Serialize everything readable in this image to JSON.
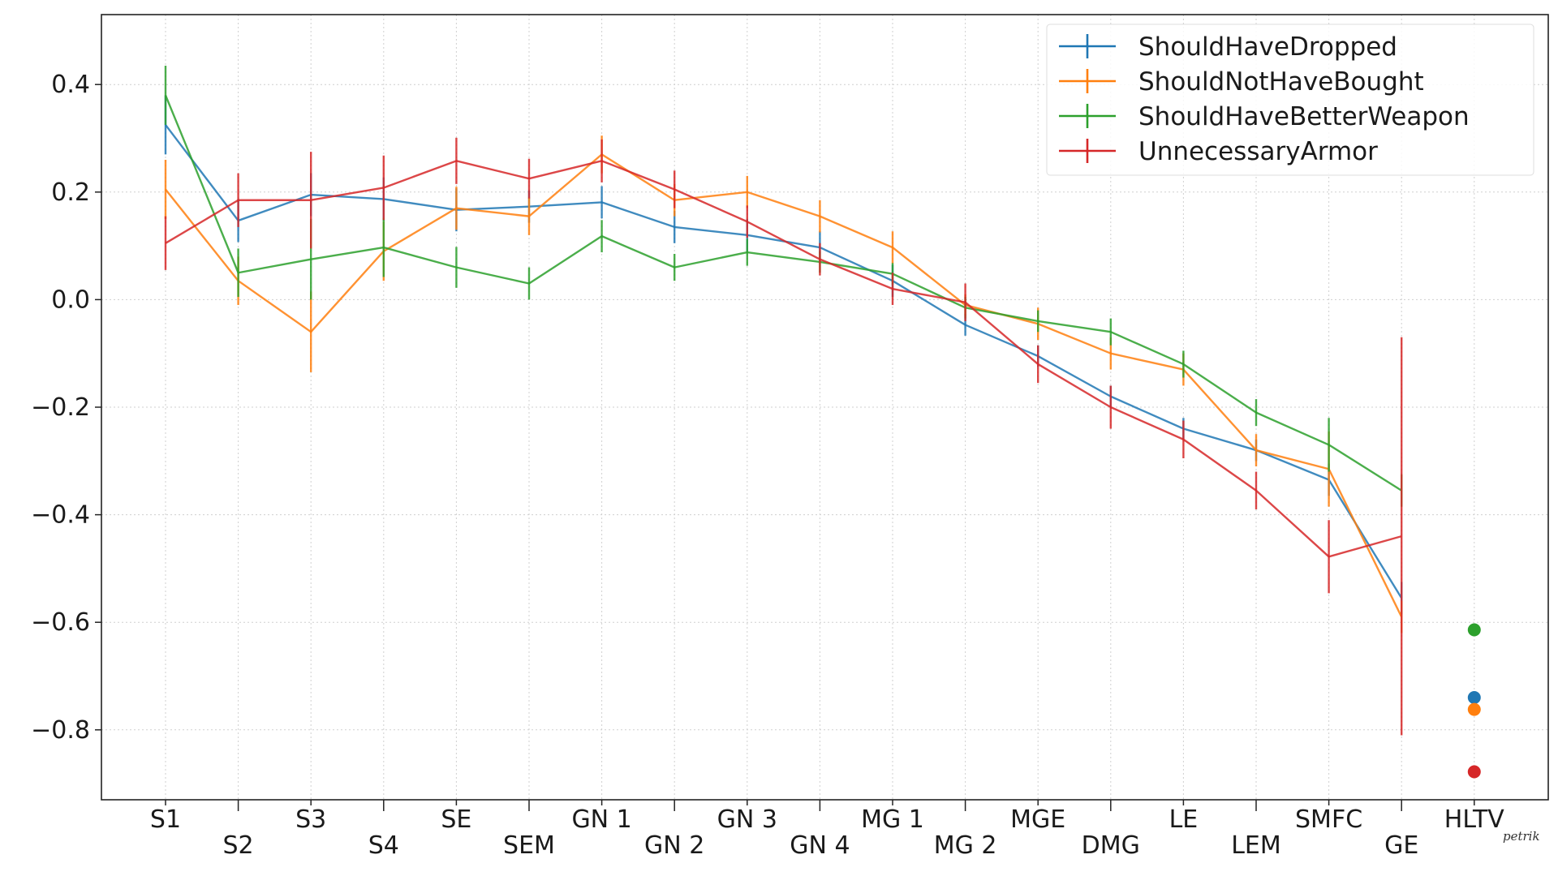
{
  "chart_data": {
    "type": "line",
    "categories": [
      "S1",
      "S2",
      "S3",
      "S4",
      "SE",
      "SEM",
      "GN 1",
      "GN 2",
      "GN 3",
      "GN 4",
      "MG 1",
      "MG 2",
      "MGE",
      "DMG",
      "LE",
      "LEM",
      "SMFC",
      "GE"
    ],
    "extra_category": "HLTV",
    "ylim": [
      -0.93,
      0.53
    ],
    "yticks": [
      0.4,
      0.2,
      0.0,
      -0.2,
      -0.4,
      -0.6,
      -0.8
    ],
    "ytick_labels": [
      "0.4",
      "0.2",
      "0.0",
      "−0.2",
      "−0.4",
      "−0.6",
      "−0.8"
    ],
    "grid": true,
    "legend_position": "top-right",
    "series": [
      {
        "name": "ShouldHaveDropped",
        "color": "#1f77b4",
        "values": [
          0.325,
          0.147,
          0.195,
          0.187,
          0.167,
          0.173,
          0.181,
          0.135,
          0.12,
          0.097,
          0.035,
          -0.047,
          -0.105,
          -0.18,
          -0.24,
          -0.28,
          -0.335,
          -0.555
        ],
        "errors": [
          0.055,
          0.04,
          0.04,
          0.04,
          0.04,
          0.03,
          0.03,
          0.03,
          0.03,
          0.03,
          0.03,
          0.02,
          0.02,
          0.02,
          0.02,
          0.02,
          0.03,
          0.03
        ],
        "hltv": -0.74
      },
      {
        "name": "ShouldNotHaveBought",
        "color": "#ff7f0e",
        "values": [
          0.205,
          0.035,
          -0.06,
          0.09,
          0.17,
          0.155,
          0.27,
          0.185,
          0.2,
          0.155,
          0.097,
          -0.01,
          -0.045,
          -0.1,
          -0.13,
          -0.28,
          -0.315,
          -0.59
        ],
        "errors": [
          0.055,
          0.045,
          0.075,
          0.055,
          0.04,
          0.035,
          0.035,
          0.03,
          0.03,
          0.03,
          0.03,
          0.02,
          0.03,
          0.03,
          0.03,
          0.03,
          0.07,
          0.03
        ],
        "hltv": -0.762
      },
      {
        "name": "ShouldHaveBetterWeapon",
        "color": "#2ca02c",
        "values": [
          0.38,
          0.05,
          0.075,
          0.097,
          0.06,
          0.03,
          0.118,
          0.06,
          0.088,
          0.07,
          0.048,
          -0.015,
          -0.04,
          -0.06,
          -0.12,
          -0.21,
          -0.27,
          -0.355
        ],
        "errors": [
          0.055,
          0.045,
          0.075,
          0.055,
          0.038,
          0.03,
          0.03,
          0.025,
          0.025,
          0.02,
          0.02,
          0.02,
          0.02,
          0.025,
          0.025,
          0.025,
          0.05,
          0.03
        ],
        "hltv": -0.614
      },
      {
        "name": "UnnecessaryArmor",
        "color": "#d62728",
        "values": [
          0.105,
          0.185,
          0.185,
          0.208,
          0.258,
          0.225,
          0.258,
          0.205,
          0.145,
          0.075,
          0.02,
          -0.005,
          -0.12,
          -0.2,
          -0.26,
          -0.355,
          -0.478,
          -0.44
        ],
        "errors": [
          0.05,
          0.05,
          0.09,
          0.06,
          0.043,
          0.037,
          0.04,
          0.035,
          0.03,
          0.03,
          0.03,
          0.035,
          0.035,
          0.04,
          0.035,
          0.035,
          0.068,
          0.37
        ],
        "hltv": -0.878
      }
    ]
  },
  "watermark": "petrik"
}
